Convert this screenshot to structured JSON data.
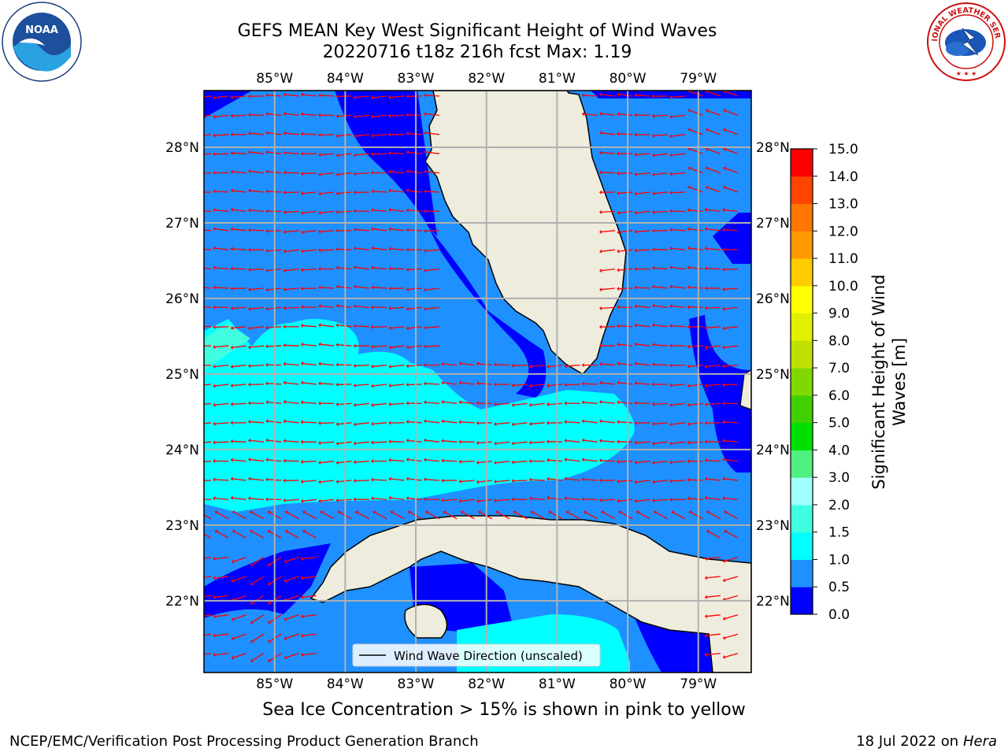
{
  "title_line1": "GEFS MEAN Key West Significant Height of Wind Waves",
  "title_line2": "20220716 t18z 216h fcst   Max: 1.19",
  "logos": {
    "left": "NOAA",
    "right": "NATIONAL WEATHER SERVICE"
  },
  "map": {
    "lon_labels": [
      "85°W",
      "84°W",
      "83°W",
      "82°W",
      "81°W",
      "80°W",
      "79°W"
    ],
    "lon_values": [
      -85,
      -84,
      -83,
      -82,
      -81,
      -80,
      -79
    ],
    "lat_labels": [
      "28°N",
      "27°N",
      "26°N",
      "25°N",
      "24°N",
      "23°N",
      "22°N"
    ],
    "lat_values": [
      28,
      27,
      26,
      25,
      24,
      23,
      22
    ],
    "lon_range": [
      -86,
      -78.25
    ],
    "lat_range": [
      21.05,
      28.75
    ],
    "land_color": "#eeecdd",
    "arrow_color": "#ff0000",
    "legend_label": "Wind Wave Direction (unscaled)"
  },
  "colorbar": {
    "label_line1": "Significant Height of Wind",
    "label_line2": "Waves [m]",
    "ticks": [
      "0.0",
      "0.5",
      "1.0",
      "1.5",
      "2.0",
      "3.0",
      "4.0",
      "5.0",
      "6.0",
      "7.0",
      "8.0",
      "9.0",
      "10.0",
      "11.0",
      "12.0",
      "13.0",
      "14.0",
      "15.0"
    ],
    "colors": [
      "#0000ff",
      "#1e90ff",
      "#00ffff",
      "#40ffe0",
      "#a0ffff",
      "#50f080",
      "#00e000",
      "#40d000",
      "#80d800",
      "#c0e000",
      "#e0f000",
      "#ffff00",
      "#ffcc00",
      "#ff9900",
      "#ff7700",
      "#ff4400",
      "#ff0000"
    ]
  },
  "note": "Sea Ice Concentration > 15% is shown in pink to yellow",
  "footer_left": "NCEP/EMC/Verification Post Processing Product Generation Branch",
  "footer_right_prefix": "18 Jul 2022 on ",
  "footer_right_host": "Hera"
}
